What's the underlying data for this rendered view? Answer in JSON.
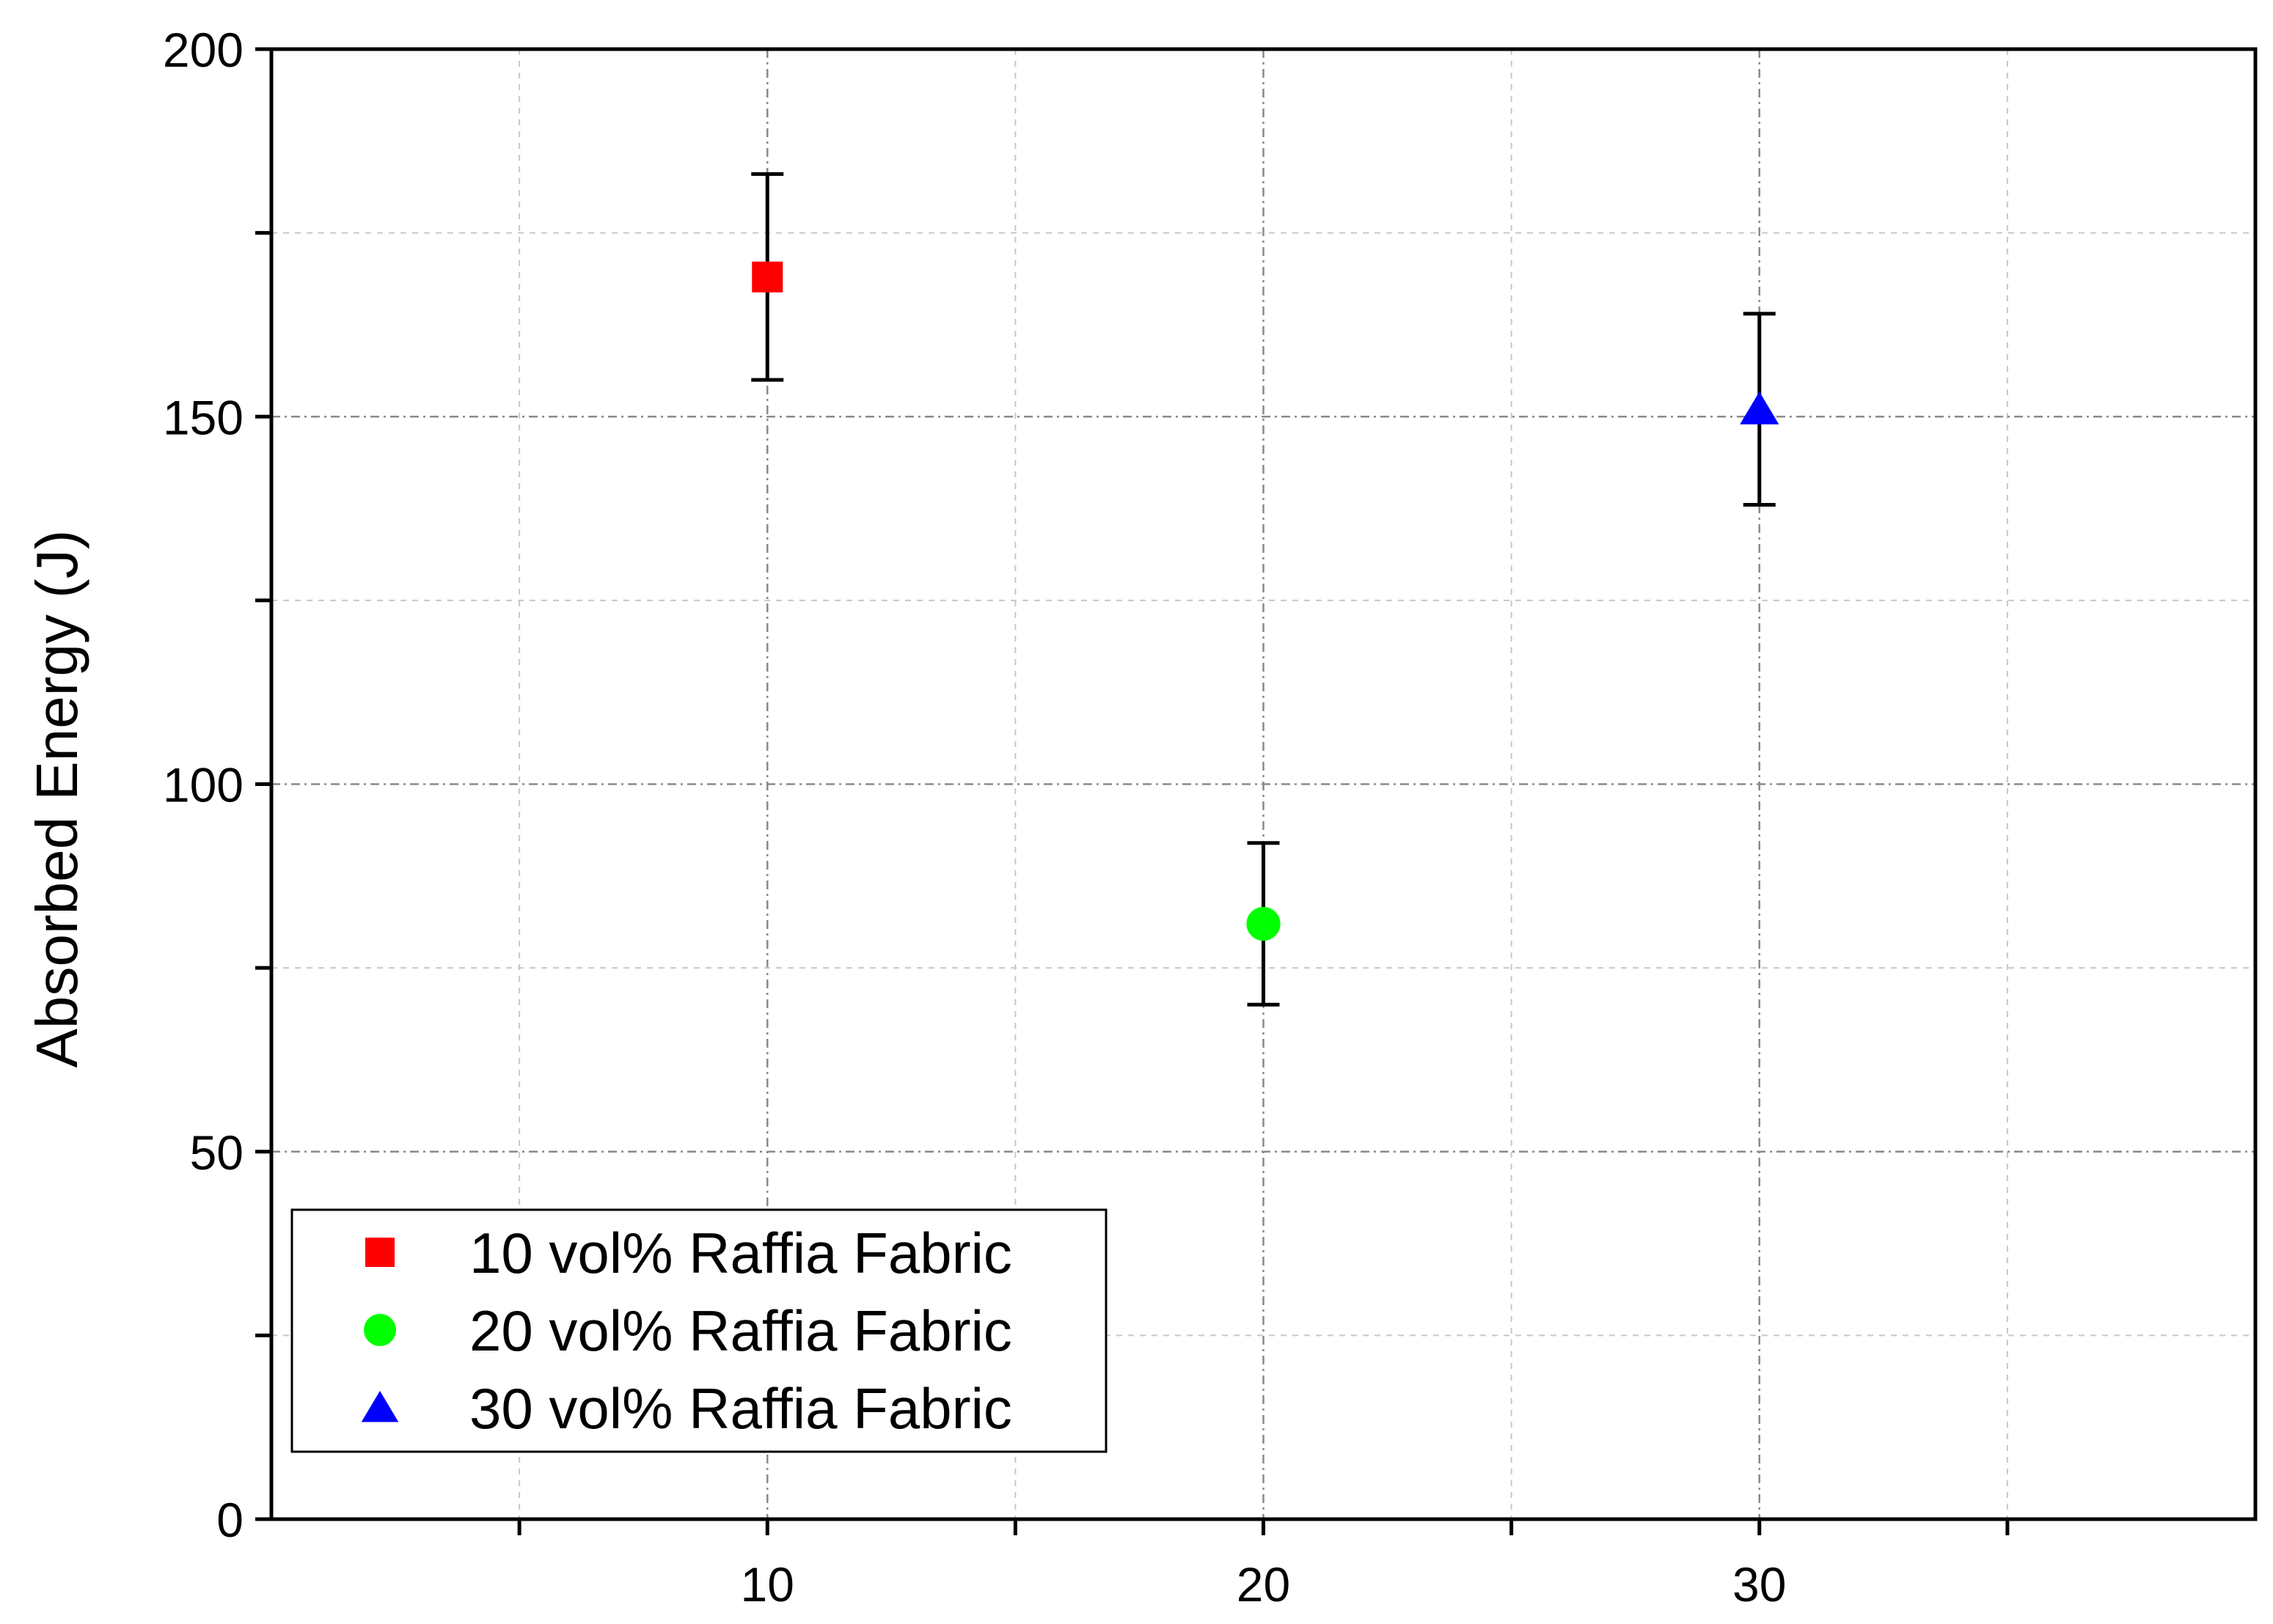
{
  "chart_data": {
    "type": "scatter",
    "title": "",
    "xlabel": "",
    "ylabel": "Absorbed Energy (J)",
    "xlim": [
      0,
      40
    ],
    "ylim": [
      0,
      200
    ],
    "x_ticks": [
      10,
      20,
      30
    ],
    "x_tick_labels": [
      "10",
      "20",
      "30"
    ],
    "y_ticks": [
      0,
      50,
      100,
      150,
      200
    ],
    "y_tick_labels": [
      "0",
      "50",
      "100",
      "150",
      "200"
    ],
    "grid": true,
    "legend_position": "bottom-left",
    "series": [
      {
        "name": "10 vol% Raffia Fabric",
        "marker": "square",
        "color": "#ff0000",
        "x": 10,
        "y": 169,
        "error_low": 155,
        "error_high": 183
      },
      {
        "name": "20 vol% Raffia Fabric",
        "marker": "circle",
        "color": "#00ff00",
        "x": 20,
        "y": 81,
        "error_low": 70,
        "error_high": 92
      },
      {
        "name": "30 vol% Raffia Fabric",
        "marker": "triangle",
        "color": "#0000ff",
        "x": 30,
        "y": 151,
        "error_low": 138,
        "error_high": 164
      }
    ]
  }
}
